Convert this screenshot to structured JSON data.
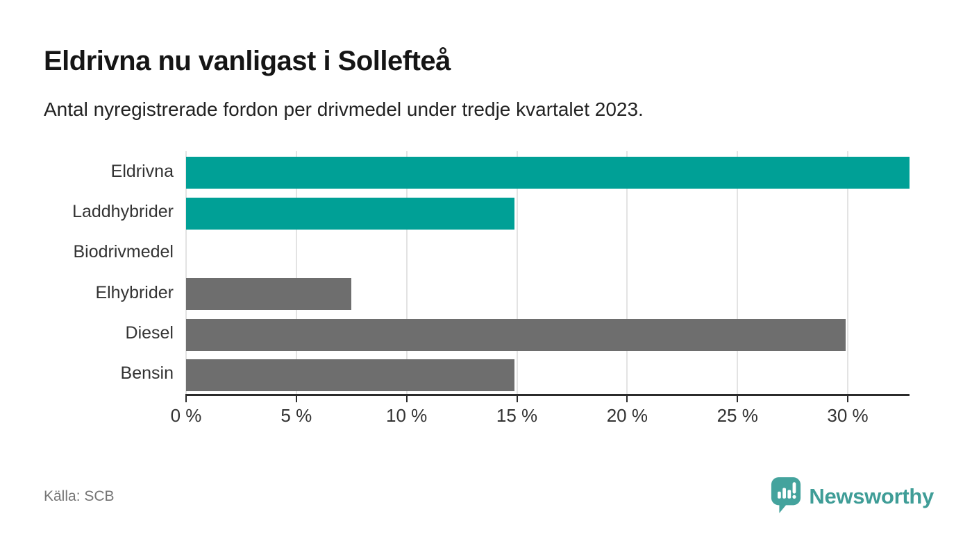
{
  "header": {
    "title": "Eldrivna nu vanligast i Sollefteå",
    "subtitle": "Antal nyregistrerade fordon per drivmedel under tredje kvartalet 2023."
  },
  "chart_data": {
    "type": "bar",
    "orientation": "horizontal",
    "title": "Eldrivna nu vanligast i Sollefteå",
    "subtitle": "Antal nyregistrerade fordon per drivmedel under tredje kvartalet 2023.",
    "categories": [
      "Eldrivna",
      "Laddhybrider",
      "Biodrivmedel",
      "Elhybrider",
      "Diesel",
      "Bensin"
    ],
    "values": [
      32.8,
      14.9,
      0,
      7.5,
      29.9,
      14.9
    ],
    "unit": "%",
    "xlim": [
      0,
      32.8
    ],
    "x_ticks": [
      0,
      5,
      10,
      15,
      20,
      25,
      30
    ],
    "tick_suffix": " %",
    "grid": true,
    "legend": "none",
    "bar_color_keys": [
      "highlight",
      "highlight",
      "highlight",
      "default",
      "default",
      "default"
    ],
    "colors": {
      "highlight": "#00a096",
      "default": "#6e6e6e",
      "axis": "#2b2b2b",
      "gridline": "#e3e3e3",
      "label": "#333333"
    }
  },
  "footer": {
    "source": "Källa: SCB",
    "brand": "Newsworthy",
    "logo_icon": "speech-bubble-bar-chart-icon",
    "brand_color": "#3f9d97"
  }
}
